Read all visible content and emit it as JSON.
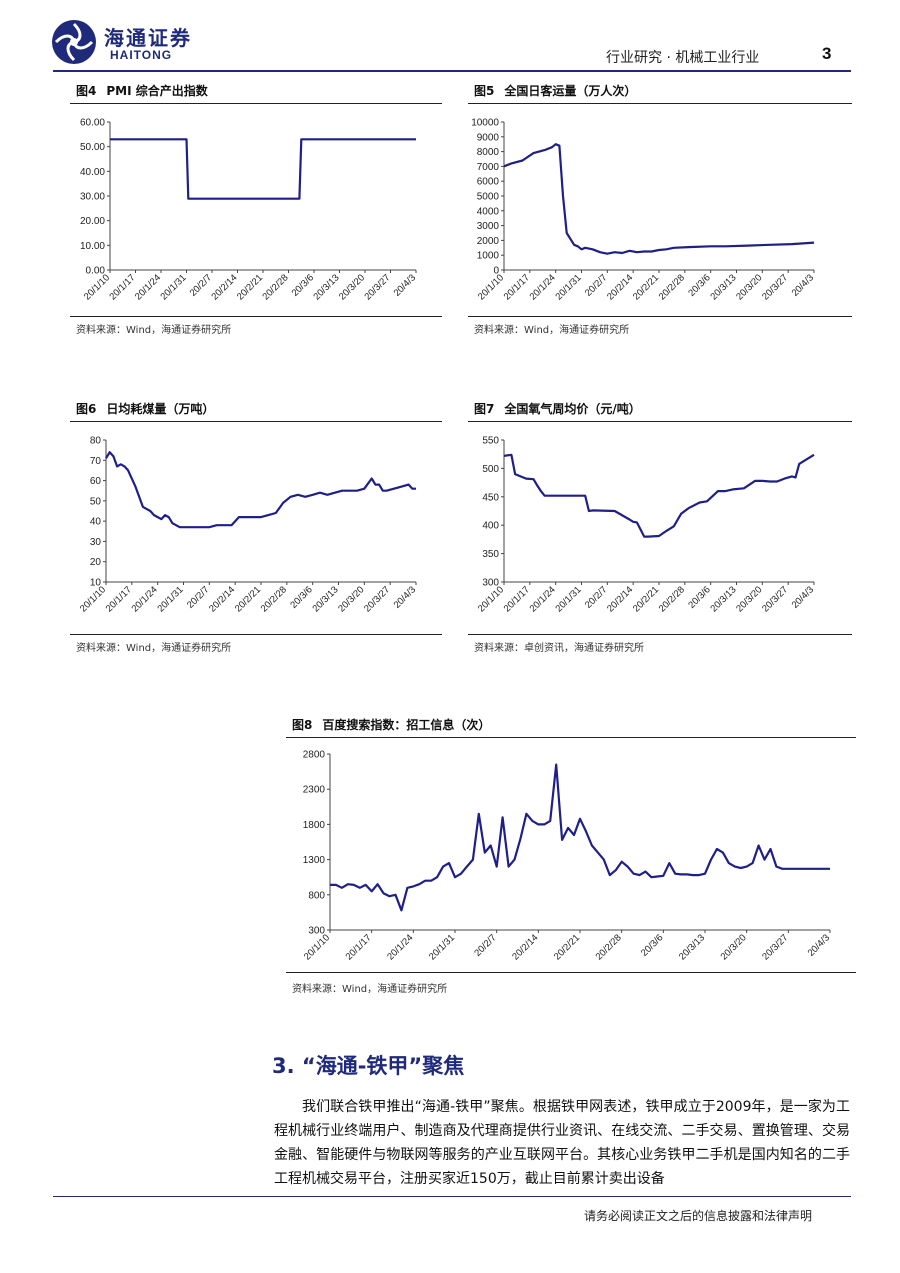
{
  "header": {
    "logo_cn": "海通证券",
    "logo_en": "HAITONG",
    "title": "行业研究 · 机械工业行业",
    "page_number": "3"
  },
  "colors": {
    "brand": "#1f2a7a",
    "series": "#1f1f8a"
  },
  "figures": [
    {
      "num": "图4",
      "title": "PMI 综合产出指数",
      "source": "资料来源：Wind，海通证券研究所",
      "chart_data": {
        "type": "line",
        "ylim": [
          0,
          60
        ],
        "yticks": [
          "0.00",
          "10.00",
          "20.00",
          "30.00",
          "40.00",
          "50.00",
          "60.00"
        ],
        "xticks": [
          "20/1/10",
          "20/1/17",
          "20/1/24",
          "20/1/31",
          "20/2/7",
          "20/2/14",
          "20/2/21",
          "20/2/28",
          "20/3/6",
          "20/3/13",
          "20/3/20",
          "20/3/27",
          "20/4/3"
        ],
        "x": [
          0,
          21,
          21.5,
          52,
          52.5,
          84
        ],
        "values": [
          53.0,
          53.0,
          28.9,
          28.9,
          53.0,
          53.0
        ]
      }
    },
    {
      "num": "图5",
      "title": "全国日客运量（万人次）",
      "source": "资料来源：Wind，海通证券研究所",
      "chart_data": {
        "type": "line",
        "ylim": [
          0,
          10000
        ],
        "yticks": [
          "0",
          "1000",
          "2000",
          "3000",
          "4000",
          "5000",
          "6000",
          "7000",
          "8000",
          "9000",
          "10000"
        ],
        "xticks": [
          "20/1/10",
          "20/1/17",
          "20/1/24",
          "20/1/31",
          "20/2/7",
          "20/2/14",
          "20/2/21",
          "20/2/28",
          "20/3/6",
          "20/3/13",
          "20/3/20",
          "20/3/27",
          "20/4/3"
        ],
        "x": [
          0,
          2,
          5,
          8,
          11,
          13,
          14,
          15,
          16,
          17,
          19,
          20,
          21,
          22,
          24,
          26,
          28,
          30,
          32,
          34,
          36,
          38,
          40,
          42,
          44,
          46,
          50,
          56,
          60,
          66,
          72,
          78,
          84
        ],
        "values": [
          7000,
          7200,
          7400,
          7900,
          8100,
          8300,
          8500,
          8400,
          5000,
          2500,
          1700,
          1600,
          1400,
          1500,
          1400,
          1200,
          1100,
          1200,
          1150,
          1300,
          1200,
          1250,
          1250,
          1350,
          1400,
          1500,
          1550,
          1600,
          1600,
          1650,
          1700,
          1750,
          1850
        ]
      }
    },
    {
      "num": "图6",
      "title": "日均耗煤量（万吨）",
      "source": "资料来源：Wind，海通证券研究所",
      "chart_data": {
        "type": "line",
        "ylim": [
          10,
          80
        ],
        "yticks": [
          "10",
          "20",
          "30",
          "40",
          "50",
          "60",
          "70",
          "80"
        ],
        "xticks": [
          "20/1/10",
          "20/1/17",
          "20/1/24",
          "20/1/31",
          "20/2/7",
          "20/2/14",
          "20/2/21",
          "20/2/28",
          "20/3/6",
          "20/3/13",
          "20/3/20",
          "20/3/27",
          "20/4/3"
        ],
        "x": [
          0,
          1,
          2,
          3,
          4,
          5,
          6,
          8,
          10,
          12,
          13,
          14,
          15,
          16,
          17,
          18,
          19,
          20,
          21,
          22,
          24,
          26,
          28,
          30,
          32,
          34,
          36,
          38,
          40,
          42,
          44,
          46,
          48,
          50,
          52,
          54,
          56,
          58,
          60,
          62,
          64,
          66,
          68,
          70,
          72,
          73,
          74,
          75,
          76,
          78,
          80,
          82,
          83,
          84
        ],
        "values": [
          71,
          74,
          72,
          67,
          68,
          67,
          65,
          57,
          47,
          45,
          43,
          42,
          41,
          43,
          42,
          39,
          38,
          37,
          37,
          37,
          37,
          37,
          37,
          38,
          38,
          38,
          42,
          42,
          42,
          42,
          43,
          44,
          49,
          52,
          53,
          52,
          53,
          54,
          53,
          54,
          55,
          55,
          55,
          56,
          61,
          58,
          58,
          55,
          55,
          56,
          57,
          58,
          56,
          56
        ]
      }
    },
    {
      "num": "图7",
      "title": "全国氧气周均价（元/吨）",
      "source": "资料来源：卓创资讯，海通证券研究所",
      "chart_data": {
        "type": "line",
        "ylim": [
          300,
          550
        ],
        "yticks": [
          "300",
          "350",
          "400",
          "450",
          "500",
          "550"
        ],
        "xticks": [
          "20/1/10",
          "20/1/17",
          "20/1/24",
          "20/1/31",
          "20/2/7",
          "20/2/14",
          "20/2/21",
          "20/2/28",
          "20/3/6",
          "20/3/13",
          "20/3/20",
          "20/3/27",
          "20/4/3"
        ],
        "x": [
          0,
          2,
          3,
          6,
          8,
          9,
          10,
          11,
          12,
          20,
          22,
          23,
          24,
          30,
          34,
          35,
          36,
          38,
          39,
          42,
          44,
          46,
          48,
          50,
          53,
          55,
          58,
          60,
          62,
          65,
          68,
          70,
          72,
          74,
          76,
          78,
          79,
          80,
          82,
          84
        ],
        "values": [
          522,
          524,
          490,
          482,
          481,
          470,
          460,
          452,
          452,
          452,
          452,
          425,
          426,
          425,
          410,
          406,
          405,
          380,
          380,
          381,
          390,
          398,
          420,
          430,
          440,
          442,
          460,
          460,
          463,
          465,
          478,
          478,
          477,
          477,
          482,
          486,
          484,
          508,
          516,
          524
        ]
      }
    },
    {
      "num": "图8",
      "title": "百度搜索指数：招工信息（次）",
      "source": "资料来源：Wind，海通证券研究所",
      "chart_data": {
        "type": "line",
        "ylim": [
          300,
          2800
        ],
        "yticks": [
          "300",
          "800",
          "1300",
          "1800",
          "2300",
          "2800"
        ],
        "xticks": [
          "20/1/10",
          "20/1/17",
          "20/1/24",
          "20/1/31",
          "20/2/7",
          "20/2/14",
          "20/2/21",
          "20/2/28",
          "20/3/6",
          "20/3/13",
          "20/3/20",
          "20/3/27",
          "20/4/3"
        ],
        "x": [
          0,
          1,
          2,
          3,
          4,
          5,
          6,
          7,
          8,
          9,
          10,
          11,
          12,
          13,
          14,
          15,
          16,
          17,
          18,
          19,
          20,
          21,
          22,
          23,
          24,
          25,
          26,
          27,
          28,
          29,
          30,
          31,
          32,
          33,
          34,
          35,
          36,
          37,
          38,
          39,
          40,
          41,
          42,
          43,
          44,
          45,
          46,
          47,
          48,
          49,
          50,
          51,
          52,
          53,
          54,
          55,
          56,
          57,
          58,
          59,
          60,
          61,
          62,
          63,
          64,
          65,
          66,
          67,
          68,
          69,
          70,
          71,
          72,
          73,
          74,
          75,
          76,
          77,
          78,
          79,
          80,
          81,
          82,
          83,
          84
        ],
        "values": [
          940,
          940,
          900,
          950,
          940,
          900,
          940,
          850,
          950,
          820,
          780,
          800,
          580,
          900,
          920,
          950,
          1000,
          1000,
          1050,
          1200,
          1250,
          1050,
          1100,
          1200,
          1300,
          1950,
          1400,
          1500,
          1200,
          1900,
          1200,
          1300,
          1600,
          1950,
          1850,
          1800,
          1800,
          1850,
          2650,
          1580,
          1750,
          1650,
          1880,
          1700,
          1500,
          1400,
          1300,
          1080,
          1150,
          1270,
          1200,
          1100,
          1080,
          1130,
          1050,
          1060,
          1070,
          1250,
          1100,
          1090,
          1090,
          1080,
          1080,
          1100,
          1300,
          1450,
          1400,
          1250,
          1200,
          1180,
          1200,
          1250,
          1500,
          1300,
          1450,
          1200,
          1170,
          1170,
          1170,
          1170,
          1170,
          1170,
          1170,
          1170,
          1170
        ]
      }
    }
  ],
  "section": {
    "title": "3. “海通-铁甲”聚焦",
    "body": "我们联合铁甲推出“海通-铁甲”聚焦。根据铁甲网表述，铁甲成立于2009年，是一家为工程机械行业终端用户、制造商及代理商提供行业资讯、在线交流、二手交易、置换管理、交易金融、智能硬件与物联网等服务的产业互联网平台。其核心业务铁甲二手机是国内知名的二手工程机械交易平台，注册买家近150万，截止目前累计卖出设备"
  },
  "footer": {
    "text": "请务必阅读正文之后的信息披露和法律声明"
  }
}
